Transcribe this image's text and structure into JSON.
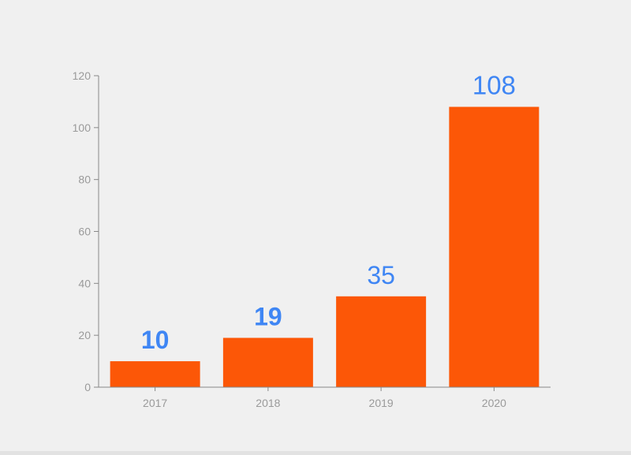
{
  "chart_data": {
    "type": "bar",
    "categories": [
      "2017",
      "2018",
      "2019",
      "2020"
    ],
    "values": [
      10,
      19,
      35,
      108
    ],
    "data_labels": [
      "10",
      "19",
      "35",
      "108"
    ],
    "title": "",
    "xlabel": "",
    "ylabel": "",
    "ylim": [
      0,
      120
    ],
    "yticks": [
      0,
      20,
      40,
      60,
      80,
      100,
      120
    ],
    "grid": false,
    "legend": "none"
  },
  "colors": {
    "background": "#f0f0f0",
    "bar": "#fc5707",
    "data_label": "#3f86f4",
    "axis": "#888888",
    "tick_label": "#9a9a9a"
  }
}
